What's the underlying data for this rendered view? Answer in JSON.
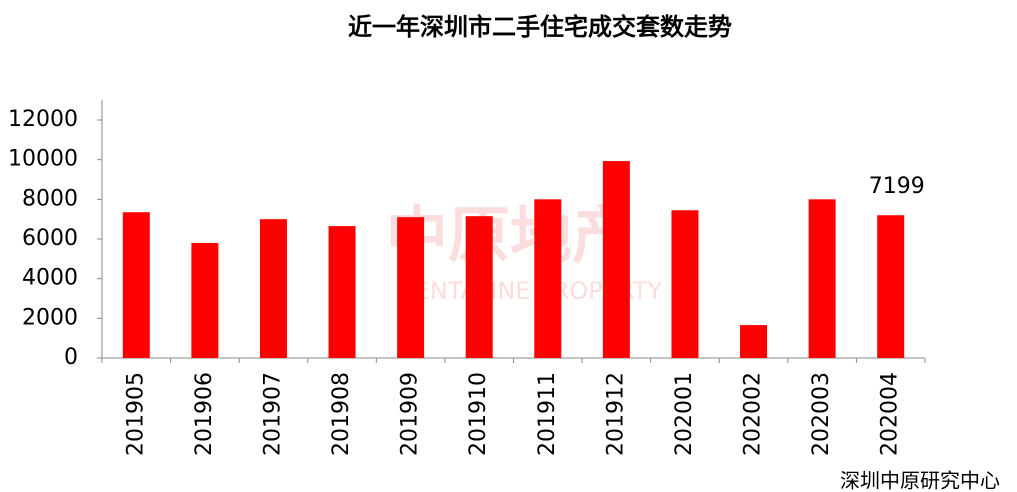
{
  "chart_data": {
    "type": "bar",
    "title": "近一年深圳市二手住宅成交套数走势",
    "categories": [
      "201905",
      "201906",
      "201907",
      "201908",
      "201909",
      "201910",
      "201911",
      "201912",
      "202001",
      "202002",
      "202003",
      "202004"
    ],
    "values": [
      7350,
      5800,
      7000,
      6650,
      7100,
      7150,
      8000,
      9930,
      7450,
      1660,
      8000,
      7199
    ],
    "color": "#ff0000",
    "ylim": [
      0,
      12000
    ],
    "yticks": [
      0,
      2000,
      4000,
      6000,
      8000,
      10000,
      12000
    ],
    "grid": false,
    "data_labels": "last",
    "source": "深圳中原研究中心",
    "watermark": [
      "中原地产",
      "CENTALINE PROPERTY"
    ]
  }
}
